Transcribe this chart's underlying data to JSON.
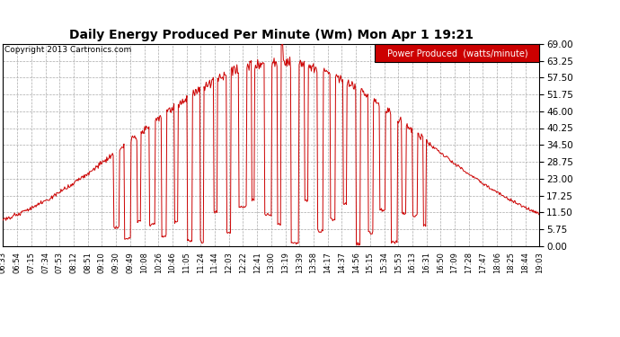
{
  "title": "Daily Energy Produced Per Minute (Wm) Mon Apr 1 19:21",
  "copyright": "Copyright 2013 Cartronics.com",
  "legend_label": "Power Produced  (watts/minute)",
  "legend_bg": "#cc0000",
  "legend_text_color": "#ffffff",
  "line_color": "#cc0000",
  "background_color": "#ffffff",
  "grid_color": "#aaaaaa",
  "yticks": [
    0.0,
    5.75,
    11.5,
    17.25,
    23.0,
    28.75,
    34.5,
    40.25,
    46.0,
    51.75,
    57.5,
    63.25,
    69.0
  ],
  "xtick_labels": [
    "06:33",
    "06:54",
    "07:15",
    "07:34",
    "07:53",
    "08:12",
    "08:51",
    "09:10",
    "09:30",
    "09:49",
    "10:08",
    "10:26",
    "10:46",
    "11:05",
    "11:24",
    "11:44",
    "12:03",
    "12:22",
    "12:41",
    "13:00",
    "13:19",
    "13:39",
    "13:58",
    "14:17",
    "14:37",
    "14:56",
    "15:15",
    "15:34",
    "15:53",
    "16:13",
    "16:31",
    "16:50",
    "17:09",
    "17:28",
    "17:47",
    "18:06",
    "18:25",
    "18:44",
    "19:03"
  ],
  "ylim": [
    0,
    69.0
  ],
  "figsize": [
    6.9,
    3.75
  ],
  "dpi": 100
}
